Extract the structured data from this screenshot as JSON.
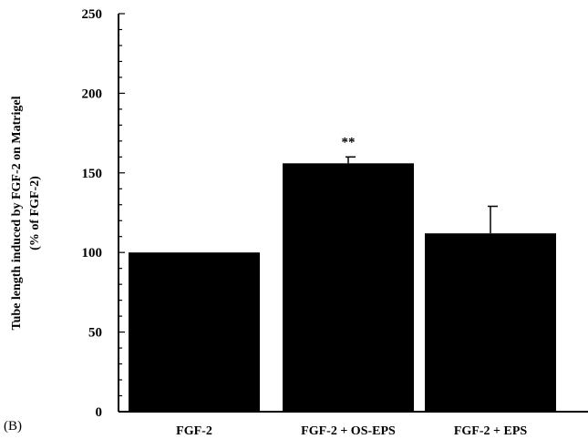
{
  "chart_data": {
    "type": "bar",
    "panel_label": "(B)",
    "ylabel": "Tube length induced by FGF-2 on Matrigel",
    "ylabel2": "(% of FGF-2)",
    "xlabel": "",
    "title": "",
    "ylim": [
      0,
      250
    ],
    "yticks": [
      "0",
      "50",
      "100",
      "150",
      "200",
      "250"
    ],
    "categories": [
      "FGF-2",
      "FGF-2 + OS-EPS",
      "FGF-2 + EPS"
    ],
    "values": [
      100,
      156,
      112
    ],
    "errors": [
      0,
      4,
      17
    ],
    "annotations": [
      "",
      "**",
      ""
    ],
    "bar_color": "#000000",
    "grid": false
  }
}
